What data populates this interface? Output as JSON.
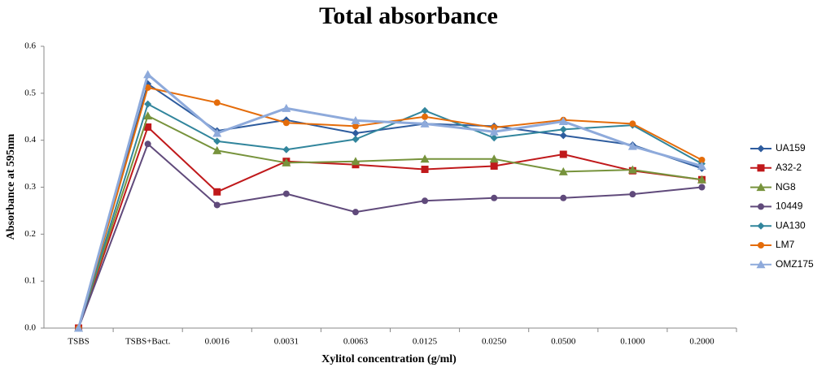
{
  "chart_data": {
    "type": "line",
    "title": "Total absorbance",
    "x_label": "Xylitol concentration (g/ml)",
    "y_label": "Absorbance at 595nm",
    "categories": [
      "TSBS",
      "TSBS+Bact.",
      "0.0016",
      "0.0031",
      "0.0063",
      "0.0125",
      "0.0250",
      "0.0500",
      "0.1000",
      "0.2000"
    ],
    "ylim": [
      0,
      0.6
    ],
    "yticks": [
      {
        "value": 0,
        "label": "0.0"
      },
      0.1,
      0.2,
      0.3,
      0.4,
      0.5,
      0.6
    ],
    "grid": false,
    "legend": "right",
    "series": [
      {
        "name": "UA159",
        "color": "#2e5c9e",
        "marker": "diamond",
        "values": [
          0,
          0.52,
          0.42,
          0.443,
          0.415,
          0.435,
          0.43,
          0.41,
          0.39,
          0.34
        ]
      },
      {
        "name": "A32-2",
        "color": "#c0191b",
        "marker": "square",
        "values": [
          0,
          0.428,
          0.29,
          0.355,
          0.348,
          0.338,
          0.345,
          0.37,
          0.335,
          0.316
        ]
      },
      {
        "name": "NG8",
        "color": "#77933c",
        "marker": "triangle",
        "values": [
          0,
          0.452,
          0.378,
          0.352,
          0.355,
          0.36,
          0.36,
          0.333,
          0.337,
          0.316
        ]
      },
      {
        "name": "10449",
        "color": "#604a7b",
        "marker": "circle",
        "values": [
          0,
          0.392,
          0.262,
          0.286,
          0.247,
          0.271,
          0.277,
          0.277,
          0.285,
          0.3
        ]
      },
      {
        "name": "UA130",
        "color": "#31859c",
        "marker": "diamond",
        "values": [
          0,
          0.477,
          0.398,
          0.38,
          0.402,
          0.463,
          0.405,
          0.423,
          0.432,
          0.35
        ]
      },
      {
        "name": "LM7",
        "color": "#e46c0a",
        "marker": "circle",
        "values": [
          0,
          0.512,
          0.48,
          0.437,
          0.43,
          0.45,
          0.427,
          0.443,
          0.435,
          0.358
        ]
      },
      {
        "name": "OMZ175",
        "color": "#8eaadb",
        "marker": "triangle",
        "values": [
          0,
          0.54,
          0.415,
          0.468,
          0.442,
          0.435,
          0.418,
          0.44,
          0.387,
          0.345
        ]
      }
    ]
  }
}
